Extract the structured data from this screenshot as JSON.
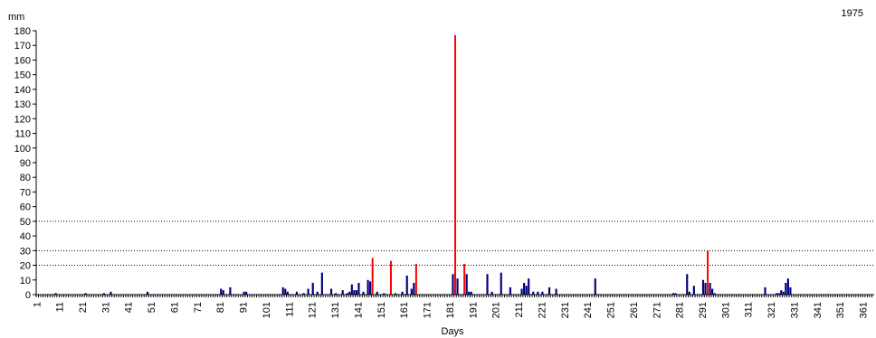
{
  "chart_data": {
    "type": "bar",
    "title": "1975",
    "ylabel": "mm",
    "xlabel": "Days",
    "ylim": [
      0,
      180
    ],
    "y_ticks": [
      0,
      10,
      20,
      30,
      40,
      50,
      60,
      70,
      80,
      90,
      100,
      110,
      120,
      130,
      140,
      150,
      160,
      170,
      180
    ],
    "x_range": [
      1,
      365
    ],
    "x_ticks": [
      1,
      11,
      21,
      31,
      41,
      51,
      61,
      71,
      81,
      91,
      101,
      111,
      121,
      131,
      141,
      151,
      161,
      171,
      181,
      191,
      201,
      211,
      221,
      231,
      241,
      251,
      261,
      271,
      281,
      291,
      301,
      311,
      321,
      331,
      341,
      351,
      361
    ],
    "reference_lines": [
      20,
      30,
      50
    ],
    "grid": false,
    "legend": "none",
    "colors": {
      "normal": "#000080",
      "extreme": "#ff0000",
      "reference": "#000000"
    },
    "extreme_threshold": 20,
    "series": [
      {
        "x": [
          9,
          22,
          30,
          33,
          49,
          81,
          82,
          85,
          91,
          92,
          108,
          109,
          110,
          114,
          117,
          119,
          121,
          123,
          125,
          129,
          131,
          134,
          136,
          137,
          138,
          139,
          140,
          141,
          143,
          145,
          146,
          147,
          149,
          152,
          155,
          157,
          160,
          162,
          164,
          165,
          166,
          182,
          183,
          184,
          187,
          188,
          189,
          190,
          197,
          199,
          203,
          207,
          212,
          213,
          214,
          215,
          217,
          219,
          221,
          224,
          227,
          244,
          278,
          279,
          284,
          285,
          287,
          291,
          292,
          293,
          294,
          295,
          296,
          318,
          323,
          324,
          325,
          326,
          327,
          328,
          329
        ],
        "values": [
          1,
          1,
          1,
          2,
          2,
          4,
          3,
          5,
          2,
          2,
          5,
          4,
          2,
          2,
          1,
          4,
          8,
          2,
          15,
          4,
          1,
          3,
          1,
          2,
          7,
          3,
          3,
          8,
          2,
          10,
          9,
          25,
          2,
          1,
          23,
          1,
          2,
          13,
          4,
          8,
          21,
          14,
          177,
          11,
          21,
          14,
          2,
          2,
          14,
          2,
          15,
          5,
          4,
          8,
          6,
          11,
          2,
          2,
          2,
          5,
          4,
          11,
          1,
          1,
          14,
          2,
          6,
          10,
          8,
          30,
          8,
          4,
          1,
          5,
          1,
          1,
          3,
          2,
          8,
          11,
          5
        ]
      }
    ]
  }
}
